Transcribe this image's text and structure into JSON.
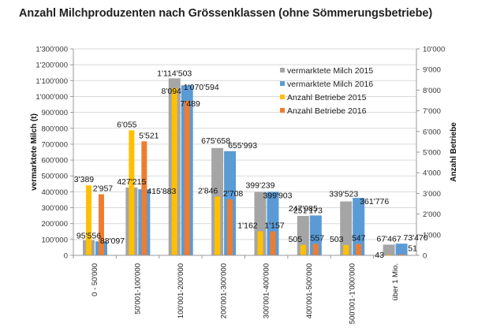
{
  "chart_data": {
    "type": "bar",
    "title": "Anzahl Milchproduzenten nach Grössenklassen (ohne Sömmerungsbetriebe)",
    "ylabel": "vermarktete Milch (t)",
    "y2label": "Anzahl Betriebe",
    "ylim": [
      0,
      1300000
    ],
    "y2lim": [
      0,
      10000
    ],
    "yticks": [
      "0",
      "100'000",
      "200'000",
      "300'000",
      "400'000",
      "500'000",
      "600'000",
      "700'000",
      "800'000",
      "900'000",
      "1'000'000",
      "1'100'000",
      "1'200'000",
      "1'300'000"
    ],
    "y2ticks": [
      "0",
      "1'000",
      "2'000",
      "3'000",
      "4'000",
      "5'000",
      "6'000",
      "7'000",
      "8'000",
      "9'000",
      "10'000"
    ],
    "grid": true,
    "legend_position": "top-right",
    "categories": [
      "0 - 50'000",
      "50'001-100'000",
      "100'001-200'000",
      "200'001-300'000",
      "300'001-400'000",
      "400'001-500'000",
      "500'001-1'000'000",
      "über 1 Mio."
    ],
    "series": [
      {
        "name": "vermarktete Milch 2015",
        "axis": "left",
        "color": "#a5a5a5",
        "values": [
          95556,
          427215,
          1114503,
          675658,
          399239,
          247985,
          339523,
          67467
        ],
        "labels": [
          "95'556",
          "427'215",
          "1'114'503",
          "675'658",
          "399'239",
          "247'985",
          "339'523",
          "67'467"
        ]
      },
      {
        "name": "vermarktete Milch 2016",
        "axis": "left",
        "color": "#5b9bd5",
        "values": [
          88097,
          415883,
          1070594,
          655993,
          399903,
          251173,
          361776,
          73470
        ],
        "labels": [
          "88'097",
          "415'883",
          "1'070'594",
          "655'993",
          "399'903",
          "251'173",
          "361'776",
          "73'470"
        ]
      },
      {
        "name": "Anzahl Betriebe 2015",
        "axis": "right",
        "color": "#ffc000",
        "values": [
          3389,
          6055,
          8094,
          2846,
          1162,
          505,
          503,
          43
        ],
        "labels": [
          "3'389",
          "6'055",
          "8'094",
          "2'846",
          "1'162",
          "505",
          "503",
          "43"
        ]
      },
      {
        "name": "Anzahl Betriebe 2016",
        "axis": "right",
        "color": "#ed7d31",
        "values": [
          2957,
          5521,
          7489,
          2708,
          1157,
          557,
          547,
          51
        ],
        "labels": [
          "2'957",
          "5'521",
          "7'489",
          "2'708",
          "1'157",
          "557",
          "547",
          "51"
        ]
      }
    ]
  }
}
